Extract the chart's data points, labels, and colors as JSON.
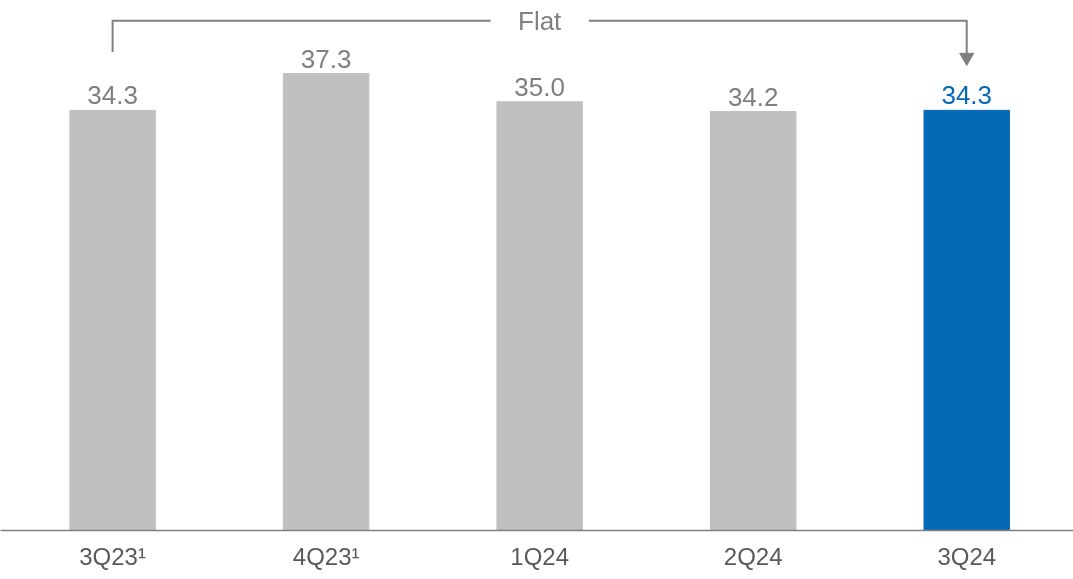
{
  "chart_data": {
    "type": "bar",
    "categories": [
      "3Q23¹",
      "4Q23¹",
      "1Q24",
      "2Q24",
      "3Q24"
    ],
    "values": [
      34.3,
      37.3,
      35.0,
      34.2,
      34.3
    ],
    "colors": [
      "#bfbfbf",
      "#bfbfbf",
      "#bfbfbf",
      "#bfbfbf",
      "#0569b5"
    ],
    "value_labels": [
      "34.3",
      "37.3",
      "35.0",
      "34.2",
      "34.3"
    ],
    "grid": false,
    "annotations": [
      "Flat"
    ]
  }
}
